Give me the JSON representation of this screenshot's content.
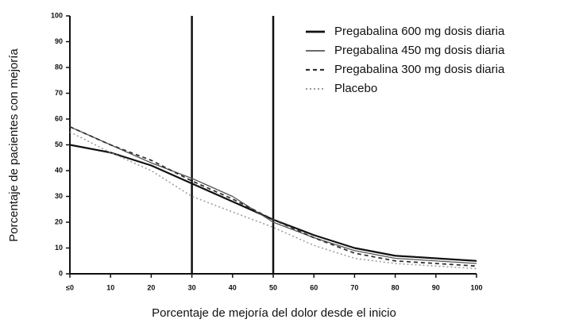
{
  "chart_data": {
    "type": "line",
    "y_label": "Porcentaje de pacientes con mejoría",
    "x_label": "Porcentaje de mejoría del dolor desde el inicio",
    "x": [
      0,
      10,
      20,
      30,
      40,
      50,
      60,
      70,
      80,
      90,
      100
    ],
    "xlim": [
      0,
      100
    ],
    "xticks": [
      {
        "value": 0,
        "label": "≤0"
      },
      10,
      20,
      30,
      40,
      50,
      60,
      70,
      80,
      90,
      100
    ],
    "ylim": [
      0,
      100
    ],
    "yticks": [
      0,
      10,
      20,
      30,
      40,
      50,
      60,
      70,
      80,
      90,
      100
    ],
    "vlines": [
      30,
      50
    ],
    "legend": "top-right",
    "series": [
      {
        "name": "Pregabalina 600 mg dosis diaria",
        "color": "#111111",
        "width": 2.2,
        "dash": "none",
        "values": [
          50,
          47,
          42,
          35,
          28,
          21,
          15,
          10,
          7,
          6,
          5
        ]
      },
      {
        "name": "Pregabalina 450 mg dosis diaria",
        "color": "#555555",
        "width": 1.3,
        "dash": "none",
        "values": [
          57,
          50,
          43,
          37,
          30,
          20,
          14,
          9,
          6,
          5,
          4
        ]
      },
      {
        "name": "Pregabalina 300 mg dosis diaria",
        "color": "#333333",
        "width": 1.8,
        "dash": "5,4",
        "values": [
          57,
          50,
          44,
          36,
          29,
          21,
          14,
          8,
          5,
          4,
          3
        ]
      },
      {
        "name": "Placebo",
        "color": "#999999",
        "width": 1.5,
        "dash": "2,3",
        "values": [
          55,
          47,
          40,
          30,
          24,
          18,
          11,
          6,
          4,
          3,
          2
        ]
      }
    ]
  }
}
